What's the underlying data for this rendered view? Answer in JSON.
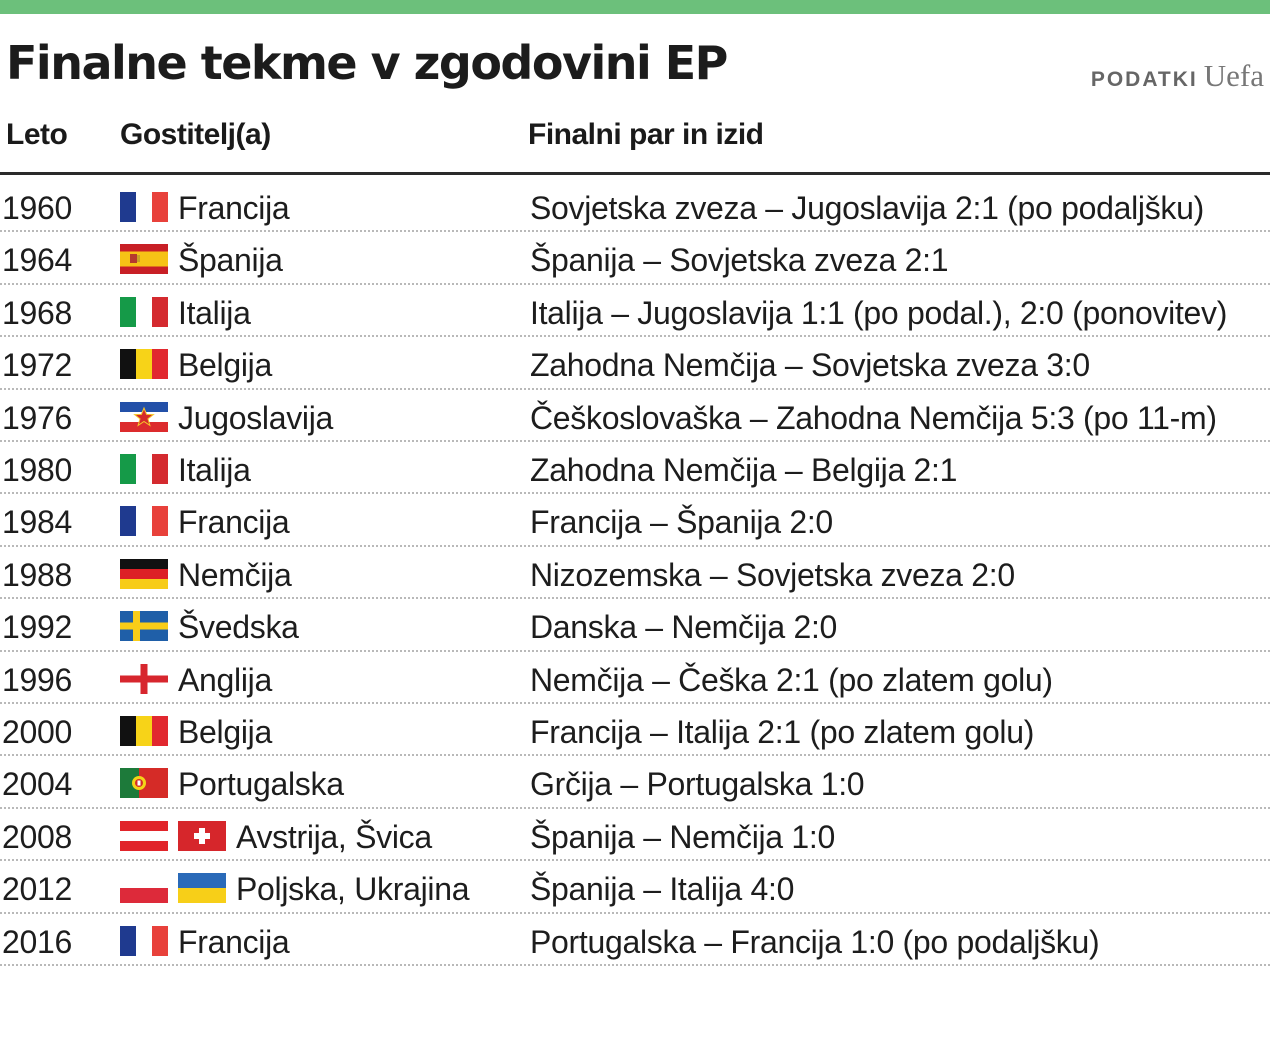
{
  "header": {
    "title": "Finalne tekme v zgodovini EP",
    "source_label": "PODATKI",
    "source_name": "Uefa",
    "accent_color": "#6cc07b"
  },
  "columns": {
    "year": "Leto",
    "host": "Gostitelj(a)",
    "final": "Finalni par in izid"
  },
  "rows": [
    {
      "year": "1960",
      "host": "Francija",
      "flags": [
        "france-flag-icon"
      ],
      "final": "Sovjetska zveza – Jugoslavija 2:1 (po podaljšku)"
    },
    {
      "year": "1964",
      "host": "Španija",
      "flags": [
        "spain-flag-icon"
      ],
      "final": "Španija – Sovjetska zveza  2:1"
    },
    {
      "year": "1968",
      "host": "Italija",
      "flags": [
        "italy-flag-icon"
      ],
      "final": "Italija – Jugoslavija 1:1 (po podal.), 2:0 (ponovitev)"
    },
    {
      "year": "1972",
      "host": "Belgija",
      "flags": [
        "belgium-flag-icon"
      ],
      "final": "Zahodna Nemčija – Sovjetska zveza 3:0"
    },
    {
      "year": "1976",
      "host": "Jugoslavija",
      "flags": [
        "yugoslavia-flag-icon"
      ],
      "final": "Češkoslovaška – Zahodna Nemčija 5:3 (po 11-m)"
    },
    {
      "year": "1980",
      "host": "Italija",
      "flags": [
        "italy-flag-icon"
      ],
      "final": "Zahodna Nemčija – Belgija 2:1"
    },
    {
      "year": "1984",
      "host": "Francija",
      "flags": [
        "france-flag-icon"
      ],
      "final": "Francija – Španija 2:0"
    },
    {
      "year": "1988",
      "host": "Nemčija",
      "flags": [
        "germany-flag-icon"
      ],
      "final": "Nizozemska – Sovjetska zveza 2:0"
    },
    {
      "year": "1992",
      "host": "Švedska",
      "flags": [
        "sweden-flag-icon"
      ],
      "final": "Danska – Nemčija 2:0"
    },
    {
      "year": "1996",
      "host": "Anglija",
      "flags": [
        "england-flag-icon"
      ],
      "final": "Nemčija – Češka 2:1 (po zlatem golu)"
    },
    {
      "year": "2000",
      "host": "Belgija",
      "flags": [
        "belgium-flag-icon"
      ],
      "final": "Francija – Italija 2:1 (po zlatem golu)"
    },
    {
      "year": "2004",
      "host": "Portugalska",
      "flags": [
        "portugal-flag-icon"
      ],
      "final": "Grčija – Portugalska 1:0"
    },
    {
      "year": "2008",
      "host": "Avstrija, Švica",
      "flags": [
        "austria-flag-icon",
        "switzerland-flag-icon"
      ],
      "final": "Španija – Nemčija 1:0"
    },
    {
      "year": "2012",
      "host": "Poljska, Ukrajina",
      "flags": [
        "poland-flag-icon",
        "ukraine-flag-icon"
      ],
      "final": "Španija – Italija 4:0"
    },
    {
      "year": "2016",
      "host": "Francija",
      "flags": [
        "france-flag-icon"
      ],
      "final": "Portugalska – Francija 1:0 (po podaljšku)"
    }
  ]
}
